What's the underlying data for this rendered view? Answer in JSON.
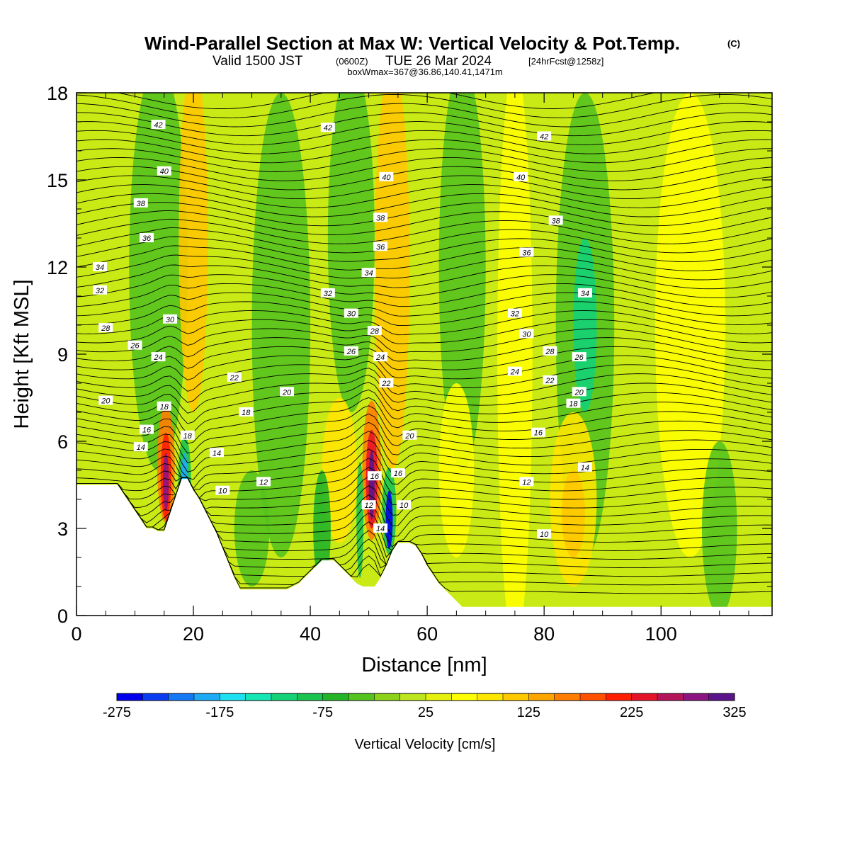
{
  "title": {
    "main": "Wind-Parallel Section at Max W: Vertical Velocity & Pot.Temp.",
    "copyright": "(C)",
    "valid_a": "Valid 1500 JST",
    "valid_b": "(0600Z)",
    "valid_c": "TUE 26 Mar 2024",
    "valid_d": "[24hrFcst@1258z]",
    "box": "boxWmax=367@36.86,140.41,1471m"
  },
  "chart_data": {
    "type": "heatmap",
    "xlabel": "Distance [nm]",
    "ylabel": "Height [Kft MSL]",
    "xlim": [
      0,
      119
    ],
    "ylim": [
      0,
      18
    ],
    "x_ticks": [
      0,
      20,
      40,
      60,
      80,
      100
    ],
    "y_ticks": [
      0,
      3,
      6,
      9,
      12,
      15,
      18
    ],
    "colorbar": {
      "label": "Vertical Velocity [cm/s]",
      "tick_labels": [
        "-275",
        "-175",
        "-75",
        "25",
        "125",
        "225",
        "325"
      ],
      "min": -275,
      "max": 325,
      "bins": 24,
      "colors": [
        "#0000ee",
        "#0a3cf2",
        "#1478f5",
        "#1eaaf5",
        "#1ee0f0",
        "#14e6b4",
        "#14d278",
        "#19c350",
        "#23b428",
        "#55c31e",
        "#8cd219",
        "#bee61e",
        "#e6f00f",
        "#ffff00",
        "#ffe600",
        "#ffc800",
        "#ffa500",
        "#ff7d00",
        "#ff5000",
        "#ff1e00",
        "#e61428",
        "#b4145a",
        "#8c1482",
        "#5a148c"
      ]
    },
    "vertical_velocity_features": [
      {
        "x": 15.5,
        "z": 4.8,
        "w": 280,
        "type": "updraft"
      },
      {
        "x": 18.5,
        "z": 4.5,
        "w": -250,
        "type": "downdraft"
      },
      {
        "x": 50.5,
        "z": 4.5,
        "w": 300,
        "type": "updraft"
      },
      {
        "x": 53.5,
        "z": 3.5,
        "w": -275,
        "type": "downdraft"
      },
      {
        "x": 20,
        "z": 13,
        "w": 150,
        "type": "updraft"
      },
      {
        "x": 54,
        "z": 13,
        "w": 150,
        "type": "updraft"
      },
      {
        "x": 87,
        "z": 10,
        "w": -120,
        "type": "downdraft"
      },
      {
        "x": 85,
        "z": 4,
        "w": 120,
        "type": "updraft"
      },
      {
        "x": 13,
        "z": 13,
        "w": -100,
        "type": "downdraft"
      }
    ],
    "terrain_profile": [
      [
        0,
        4.5
      ],
      [
        7,
        4.5
      ],
      [
        8,
        4.2
      ],
      [
        9,
        3.9
      ],
      [
        10,
        3.6
      ],
      [
        11,
        3.3
      ],
      [
        12,
        3.0
      ],
      [
        13,
        3.0
      ],
      [
        14,
        2.9
      ],
      [
        15,
        2.9
      ],
      [
        16,
        3.5
      ],
      [
        17,
        4.1
      ],
      [
        18,
        4.7
      ],
      [
        19,
        4.7
      ],
      [
        20,
        4.3
      ],
      [
        21,
        4.0
      ],
      [
        22,
        3.6
      ],
      [
        23,
        3.2
      ],
      [
        24,
        2.8
      ],
      [
        25,
        2.3
      ],
      [
        26,
        1.8
      ],
      [
        27,
        1.3
      ],
      [
        28,
        0.9
      ],
      [
        30,
        0.9
      ],
      [
        34,
        0.9
      ],
      [
        36,
        0.9
      ],
      [
        37,
        1.0
      ],
      [
        38,
        1.1
      ],
      [
        39,
        1.3
      ],
      [
        40,
        1.5
      ],
      [
        41,
        1.7
      ],
      [
        42,
        1.9
      ],
      [
        44,
        1.9
      ],
      [
        45,
        1.7
      ],
      [
        46,
        1.5
      ],
      [
        47,
        1.3
      ],
      [
        48,
        1.1
      ],
      [
        49,
        1.0
      ],
      [
        50,
        1.0
      ],
      [
        51,
        1.0
      ],
      [
        52,
        1.3
      ],
      [
        53,
        1.7
      ],
      [
        54,
        2.2
      ],
      [
        55,
        2.5
      ],
      [
        56,
        2.5
      ],
      [
        57,
        2.5
      ],
      [
        58,
        2.4
      ],
      [
        59,
        2.1
      ],
      [
        60,
        1.7
      ],
      [
        61,
        1.4
      ],
      [
        62,
        1.1
      ],
      [
        63,
        0.9
      ],
      [
        64,
        0.7
      ],
      [
        65,
        0.5
      ],
      [
        66,
        0.3
      ],
      [
        67,
        0.3
      ],
      [
        119,
        0.3
      ]
    ],
    "theta_labels": [
      {
        "text": "42",
        "x": 14,
        "z": 16.9
      },
      {
        "text": "42",
        "x": 43,
        "z": 16.8
      },
      {
        "text": "42",
        "x": 80,
        "z": 16.5
      },
      {
        "text": "40",
        "x": 15,
        "z": 15.3
      },
      {
        "text": "40",
        "x": 53,
        "z": 15.1
      },
      {
        "text": "40",
        "x": 76,
        "z": 15.1
      },
      {
        "text": "38",
        "x": 11,
        "z": 14.2
      },
      {
        "text": "38",
        "x": 52,
        "z": 13.7
      },
      {
        "text": "38",
        "x": 82,
        "z": 13.6
      },
      {
        "text": "36",
        "x": 12,
        "z": 13.0
      },
      {
        "text": "36",
        "x": 52,
        "z": 12.7
      },
      {
        "text": "36",
        "x": 77,
        "z": 12.5
      },
      {
        "text": "34",
        "x": 4,
        "z": 12.0
      },
      {
        "text": "34",
        "x": 50,
        "z": 11.8
      },
      {
        "text": "34",
        "x": 87,
        "z": 11.1
      },
      {
        "text": "32",
        "x": 4,
        "z": 11.2
      },
      {
        "text": "32",
        "x": 43,
        "z": 11.1
      },
      {
        "text": "32",
        "x": 75,
        "z": 10.4
      },
      {
        "text": "30",
        "x": 16,
        "z": 10.2
      },
      {
        "text": "30",
        "x": 47,
        "z": 10.4
      },
      {
        "text": "30",
        "x": 77,
        "z": 9.7
      },
      {
        "text": "28",
        "x": 5,
        "z": 9.9
      },
      {
        "text": "28",
        "x": 51,
        "z": 9.8
      },
      {
        "text": "28",
        "x": 81,
        "z": 9.1
      },
      {
        "text": "26",
        "x": 10,
        "z": 9.3
      },
      {
        "text": "26",
        "x": 47,
        "z": 9.1
      },
      {
        "text": "26",
        "x": 86,
        "z": 8.9
      },
      {
        "text": "24",
        "x": 14,
        "z": 8.9
      },
      {
        "text": "24",
        "x": 52,
        "z": 8.9
      },
      {
        "text": "24",
        "x": 75,
        "z": 8.4
      },
      {
        "text": "22",
        "x": 27,
        "z": 8.2
      },
      {
        "text": "22",
        "x": 53,
        "z": 8.0
      },
      {
        "text": "22",
        "x": 81,
        "z": 8.1
      },
      {
        "text": "20",
        "x": 5,
        "z": 7.4
      },
      {
        "text": "20",
        "x": 36,
        "z": 7.7
      },
      {
        "text": "20",
        "x": 86,
        "z": 7.7
      },
      {
        "text": "20",
        "x": 57,
        "z": 6.2
      },
      {
        "text": "18",
        "x": 15,
        "z": 7.2
      },
      {
        "text": "18",
        "x": 29,
        "z": 7.0
      },
      {
        "text": "18",
        "x": 85,
        "z": 7.3
      },
      {
        "text": "18",
        "x": 19,
        "z": 6.2
      },
      {
        "text": "16",
        "x": 12,
        "z": 6.4
      },
      {
        "text": "16",
        "x": 79,
        "z": 6.3
      },
      {
        "text": "16",
        "x": 55,
        "z": 4.9
      },
      {
        "text": "16",
        "x": 51,
        "z": 4.8
      },
      {
        "text": "14",
        "x": 11,
        "z": 5.8
      },
      {
        "text": "14",
        "x": 24,
        "z": 5.6
      },
      {
        "text": "14",
        "x": 87,
        "z": 5.1
      },
      {
        "text": "14",
        "x": 52,
        "z": 3.0
      },
      {
        "text": "12",
        "x": 32,
        "z": 4.6
      },
      {
        "text": "12",
        "x": 77,
        "z": 4.6
      },
      {
        "text": "12",
        "x": 50,
        "z": 3.8
      },
      {
        "text": "10",
        "x": 25,
        "z": 4.3
      },
      {
        "text": "10",
        "x": 56,
        "z": 3.8
      },
      {
        "text": "10",
        "x": 80,
        "z": 2.8
      }
    ]
  }
}
